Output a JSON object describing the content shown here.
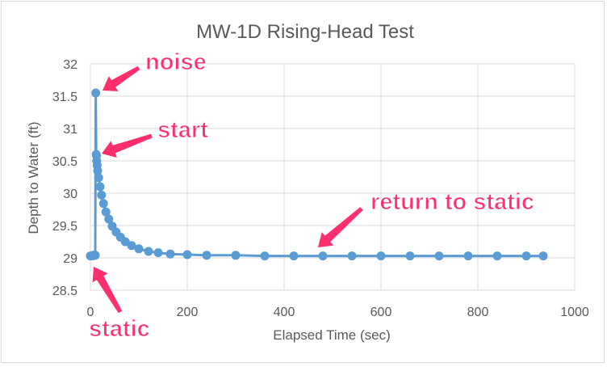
{
  "chart_data": {
    "type": "scatter",
    "title": "MW-1D Rising-Head Test",
    "xlabel": "Elapsed Time (sec)",
    "ylabel": "Depth to Water (ft)",
    "xlim": [
      0,
      1000
    ],
    "ylim": [
      28.5,
      32
    ],
    "xticks": [
      "0",
      "200",
      "400",
      "600",
      "800",
      "1000"
    ],
    "yticks": [
      "28.5",
      "29",
      "29.5",
      "30",
      "30.5",
      "31",
      "31.5",
      "32"
    ],
    "grid": true,
    "legend": "none",
    "series": [
      {
        "color": "#5b9bd5",
        "x": [
          0,
          2,
          4,
          6,
          8,
          10,
          11,
          12,
          12.5,
          13,
          14,
          15,
          17,
          20,
          23,
          27,
          32,
          38,
          45,
          53,
          62,
          72,
          85,
          100,
          120,
          140,
          165,
          200,
          240,
          300,
          360,
          420,
          480,
          540,
          600,
          660,
          720,
          780,
          840,
          900,
          935
        ],
        "y": [
          29.03,
          29.03,
          29.03,
          29.04,
          29.04,
          29.04,
          31.55,
          30.6,
          30.58,
          30.5,
          30.43,
          30.35,
          30.24,
          30.1,
          29.97,
          29.84,
          29.71,
          29.6,
          29.49,
          29.4,
          29.32,
          29.25,
          29.19,
          29.14,
          29.1,
          29.08,
          29.06,
          29.05,
          29.04,
          29.04,
          29.03,
          29.03,
          29.03,
          29.03,
          29.03,
          29.03,
          29.03,
          29.03,
          29.03,
          29.03,
          29.03
        ]
      }
    ]
  },
  "annotations": {
    "color": "#ff2e6d",
    "noise": "noise",
    "start": "start",
    "return": "return to static",
    "static": "static"
  }
}
